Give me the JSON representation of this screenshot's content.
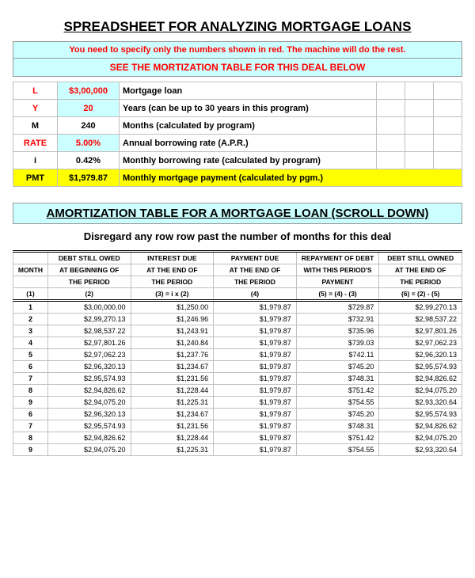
{
  "title": "SPREADSHEET FOR ANALYZING MORTGAGE LOANS",
  "instruction": "You need to specify only the numbers shown in red. The machine will do the rest.",
  "see_line": "SEE THE MORTIZATION TABLE FOR THIS DEAL BELOW",
  "params": [
    {
      "sym": "L",
      "sym_red": true,
      "val": "$3,00,000",
      "val_red": true,
      "val_bg": "bg-cyan",
      "desc": "Mortgage loan"
    },
    {
      "sym": "Y",
      "sym_red": true,
      "val": "20",
      "val_red": true,
      "val_bg": "bg-cyan",
      "desc": "Years (can be up to 30 years in this program)"
    },
    {
      "sym": "M",
      "sym_red": false,
      "val": "240",
      "val_red": false,
      "val_bg": "",
      "desc": "Months (calculated by program)"
    },
    {
      "sym": "RATE",
      "sym_red": true,
      "val": "5.00%",
      "val_red": true,
      "val_bg": "bg-cyan",
      "desc": "Annual borrowing rate (A.P.R.)"
    },
    {
      "sym": "i",
      "sym_red": false,
      "val": "0.42%",
      "val_red": false,
      "val_bg": "",
      "desc": "Monthly borrowing rate (calculated by program)"
    },
    {
      "sym": "PMT",
      "sym_red": false,
      "val": "$1,979.87",
      "val_red": false,
      "val_bg": "bg-yellow",
      "desc": "Monthly mortgage payment (calculated by pgm.)",
      "row_yellow": true
    }
  ],
  "amort_title": "AMORTIZATION TABLE FOR A MORTGAGE LOAN (SCROLL DOWN)",
  "disregard": "Disregard any row row past the number of months for this deal",
  "headers": {
    "r1": [
      "",
      "DEBT STILL OWED",
      "INTEREST DUE",
      "PAYMENT DUE",
      "REPAYMENT OF DEBT",
      "DEBT STILL OWNED"
    ],
    "r2": [
      "MONTH",
      "AT BEGINNING OF",
      "AT THE END OF",
      "AT THE END OF",
      "WITH THIS PERIOD'S",
      "AT THE END OF"
    ],
    "r3": [
      "",
      "THE PERIOD",
      "THE PERIOD",
      "THE PERIOD",
      "PAYMENT",
      "THE PERIOD"
    ],
    "r4": [
      "(1)",
      "(2)",
      "(3) = i x (2)",
      "(4)",
      "(5) = (4) - (3)",
      "(6) = (2) - (5)"
    ]
  },
  "rows": [
    {
      "m": "1",
      "c2": "$3,00,000.00",
      "c3": "$1,250.00",
      "c4": "$1,979.87",
      "c5": "$729.87",
      "c6": "$2,99,270.13"
    },
    {
      "m": "2",
      "c2": "$2,99,270.13",
      "c3": "$1,246.96",
      "c4": "$1,979.87",
      "c5": "$732.91",
      "c6": "$2,98,537.22"
    },
    {
      "m": "3",
      "c2": "$2,98,537.22",
      "c3": "$1,243.91",
      "c4": "$1,979.87",
      "c5": "$735.96",
      "c6": "$2,97,801.26"
    },
    {
      "m": "4",
      "c2": "$2,97,801.26",
      "c3": "$1,240.84",
      "c4": "$1,979.87",
      "c5": "$739.03",
      "c6": "$2,97,062.23"
    },
    {
      "m": "5",
      "c2": "$2,97,062.23",
      "c3": "$1,237.76",
      "c4": "$1,979.87",
      "c5": "$742.11",
      "c6": "$2,96,320.13"
    },
    {
      "m": "6",
      "c2": "$2,96,320.13",
      "c3": "$1,234.67",
      "c4": "$1,979.87",
      "c5": "$745.20",
      "c6": "$2,95,574.93"
    },
    {
      "m": "7",
      "c2": "$2,95,574.93",
      "c3": "$1,231.56",
      "c4": "$1,979.87",
      "c5": "$748.31",
      "c6": "$2,94,826.62"
    },
    {
      "m": "8",
      "c2": "$2,94,826.62",
      "c3": "$1,228.44",
      "c4": "$1,979.87",
      "c5": "$751.42",
      "c6": "$2,94,075.20"
    },
    {
      "m": "9",
      "c2": "$2,94,075.20",
      "c3": "$1,225.31",
      "c4": "$1,979.87",
      "c5": "$754.55",
      "c6": "$2,93,320.64"
    },
    {
      "m": "6",
      "c2": "$2,96,320.13",
      "c3": "$1,234.67",
      "c4": "$1,979.87",
      "c5": "$745.20",
      "c6": "$2,95,574.93"
    },
    {
      "m": "7",
      "c2": "$2,95,574.93",
      "c3": "$1,231.56",
      "c4": "$1,979.87",
      "c5": "$748.31",
      "c6": "$2,94,826.62"
    },
    {
      "m": "8",
      "c2": "$2,94,826.62",
      "c3": "$1,228.44",
      "c4": "$1,979.87",
      "c5": "$751.42",
      "c6": "$2,94,075.20"
    },
    {
      "m": "9",
      "c2": "$2,94,075.20",
      "c3": "$1,225.31",
      "c4": "$1,979.87",
      "c5": "$754.55",
      "c6": "$2,93,320.64"
    }
  ]
}
